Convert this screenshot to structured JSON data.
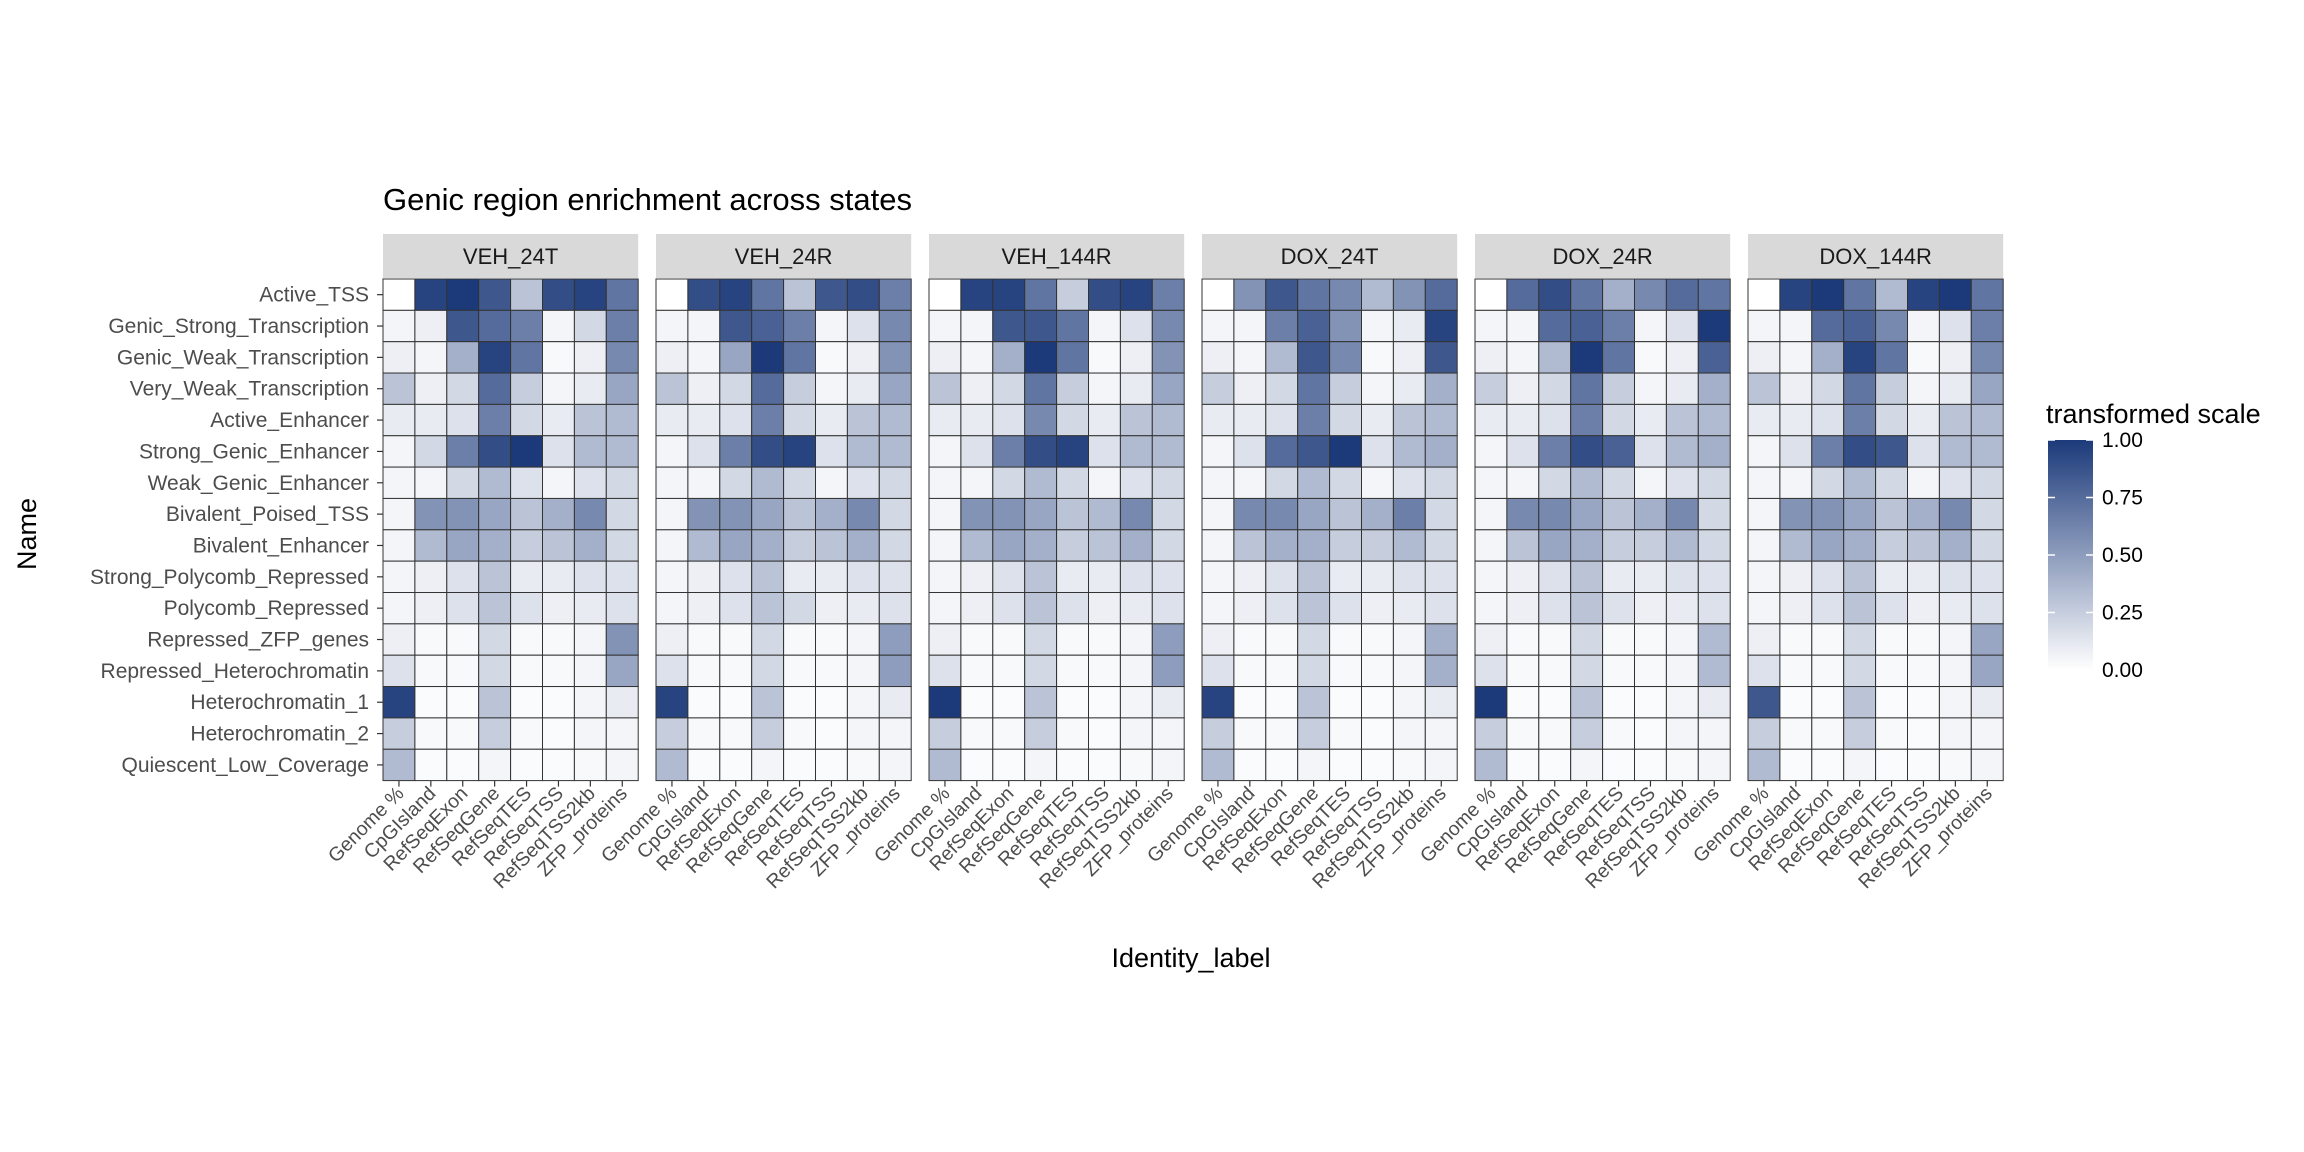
{
  "chart_data": {
    "type": "heatmap",
    "title": "Genic region enrichment across states",
    "xlabel": "Identity_label",
    "ylabel": "Name",
    "colors": {
      "low": "#ffffff",
      "high": "#1c3a7a",
      "grid": "#333333",
      "strip": "#d9d9d9"
    },
    "legend": {
      "title": "transformed scale",
      "position": "right",
      "ticks": [
        "0.00",
        "0.25",
        "0.50",
        "0.75",
        "1.00"
      ],
      "range": [
        0,
        1
      ]
    },
    "columns": [
      "Genome %",
      "CpGIsland",
      "RefSeqExon",
      "RefSeqGene",
      "RefSeqTES",
      "RefSeqTSS",
      "RefSeqTSS2kb",
      "ZFP_proteins"
    ],
    "rows": [
      "Active_TSS",
      "Genic_Strong_Transcription",
      "Genic_Weak_Transcription",
      "Very_Weak_Transcription",
      "Active_Enhancer",
      "Strong_Genic_Enhancer",
      "Weak_Genic_Enhancer",
      "Bivalent_Poised_TSS",
      "Bivalent_Enhancer",
      "Strong_Polycomb_Repressed",
      "Polycomb_Repressed",
      "Repressed_ZFP_genes",
      "Repressed_Heterochromatin",
      "Heterochromatin_1",
      "Heterochromatin_2",
      "Quiescent_Low_Coverage"
    ],
    "panels": [
      {
        "name": "VEH_24T",
        "values": [
          [
            0.0,
            0.95,
            1.0,
            0.85,
            0.3,
            0.9,
            0.95,
            0.7
          ],
          [
            0.05,
            0.08,
            0.85,
            0.75,
            0.65,
            0.05,
            0.2,
            0.65
          ],
          [
            0.08,
            0.05,
            0.4,
            0.95,
            0.7,
            0.03,
            0.08,
            0.6
          ],
          [
            0.3,
            0.08,
            0.2,
            0.75,
            0.25,
            0.05,
            0.1,
            0.45
          ],
          [
            0.1,
            0.1,
            0.15,
            0.65,
            0.2,
            0.1,
            0.3,
            0.35
          ],
          [
            0.05,
            0.2,
            0.65,
            0.9,
            1.0,
            0.15,
            0.35,
            0.35
          ],
          [
            0.05,
            0.05,
            0.2,
            0.35,
            0.15,
            0.05,
            0.15,
            0.2
          ],
          [
            0.05,
            0.55,
            0.55,
            0.45,
            0.3,
            0.4,
            0.6,
            0.2
          ],
          [
            0.05,
            0.35,
            0.45,
            0.4,
            0.25,
            0.3,
            0.4,
            0.2
          ],
          [
            0.05,
            0.08,
            0.15,
            0.3,
            0.1,
            0.1,
            0.15,
            0.15
          ],
          [
            0.05,
            0.08,
            0.15,
            0.3,
            0.15,
            0.08,
            0.1,
            0.15
          ],
          [
            0.08,
            0.03,
            0.03,
            0.2,
            0.03,
            0.03,
            0.05,
            0.55
          ],
          [
            0.15,
            0.03,
            0.03,
            0.2,
            0.03,
            0.03,
            0.05,
            0.45
          ],
          [
            0.95,
            0.02,
            0.02,
            0.3,
            0.02,
            0.02,
            0.05,
            0.1
          ],
          [
            0.25,
            0.03,
            0.03,
            0.25,
            0.03,
            0.02,
            0.05,
            0.05
          ],
          [
            0.35,
            0.02,
            0.02,
            0.05,
            0.02,
            0.02,
            0.03,
            0.05
          ]
        ]
      },
      {
        "name": "VEH_24R",
        "values": [
          [
            0.0,
            0.9,
            0.95,
            0.7,
            0.3,
            0.85,
            0.9,
            0.65
          ],
          [
            0.05,
            0.05,
            0.85,
            0.8,
            0.65,
            0.05,
            0.15,
            0.6
          ],
          [
            0.08,
            0.05,
            0.45,
            1.0,
            0.7,
            0.03,
            0.08,
            0.55
          ],
          [
            0.3,
            0.08,
            0.2,
            0.75,
            0.25,
            0.05,
            0.1,
            0.45
          ],
          [
            0.1,
            0.1,
            0.15,
            0.65,
            0.2,
            0.1,
            0.3,
            0.35
          ],
          [
            0.05,
            0.15,
            0.65,
            0.9,
            0.95,
            0.15,
            0.35,
            0.35
          ],
          [
            0.05,
            0.05,
            0.2,
            0.35,
            0.2,
            0.05,
            0.15,
            0.2
          ],
          [
            0.05,
            0.55,
            0.55,
            0.45,
            0.3,
            0.4,
            0.6,
            0.2
          ],
          [
            0.05,
            0.35,
            0.45,
            0.4,
            0.25,
            0.3,
            0.4,
            0.2
          ],
          [
            0.05,
            0.08,
            0.15,
            0.3,
            0.1,
            0.1,
            0.15,
            0.15
          ],
          [
            0.05,
            0.08,
            0.15,
            0.3,
            0.2,
            0.08,
            0.1,
            0.15
          ],
          [
            0.08,
            0.03,
            0.03,
            0.2,
            0.03,
            0.03,
            0.05,
            0.5
          ],
          [
            0.15,
            0.03,
            0.03,
            0.2,
            0.03,
            0.03,
            0.05,
            0.5
          ],
          [
            0.95,
            0.02,
            0.02,
            0.3,
            0.02,
            0.02,
            0.05,
            0.1
          ],
          [
            0.25,
            0.03,
            0.03,
            0.25,
            0.03,
            0.02,
            0.05,
            0.05
          ],
          [
            0.35,
            0.02,
            0.02,
            0.05,
            0.02,
            0.02,
            0.03,
            0.05
          ]
        ]
      },
      {
        "name": "VEH_144R",
        "values": [
          [
            0.0,
            0.95,
            0.95,
            0.7,
            0.25,
            0.9,
            0.95,
            0.65
          ],
          [
            0.05,
            0.05,
            0.85,
            0.85,
            0.7,
            0.05,
            0.15,
            0.6
          ],
          [
            0.08,
            0.05,
            0.4,
            1.0,
            0.7,
            0.03,
            0.08,
            0.55
          ],
          [
            0.3,
            0.08,
            0.2,
            0.7,
            0.25,
            0.05,
            0.1,
            0.45
          ],
          [
            0.1,
            0.1,
            0.15,
            0.6,
            0.2,
            0.1,
            0.3,
            0.35
          ],
          [
            0.05,
            0.15,
            0.65,
            0.9,
            0.95,
            0.15,
            0.35,
            0.35
          ],
          [
            0.05,
            0.05,
            0.2,
            0.35,
            0.2,
            0.05,
            0.15,
            0.2
          ],
          [
            0.05,
            0.55,
            0.55,
            0.45,
            0.3,
            0.35,
            0.6,
            0.2
          ],
          [
            0.05,
            0.35,
            0.45,
            0.4,
            0.25,
            0.3,
            0.4,
            0.2
          ],
          [
            0.05,
            0.08,
            0.15,
            0.3,
            0.1,
            0.1,
            0.15,
            0.15
          ],
          [
            0.05,
            0.08,
            0.15,
            0.3,
            0.15,
            0.08,
            0.1,
            0.15
          ],
          [
            0.08,
            0.03,
            0.03,
            0.2,
            0.03,
            0.03,
            0.05,
            0.5
          ],
          [
            0.15,
            0.03,
            0.03,
            0.2,
            0.03,
            0.03,
            0.05,
            0.5
          ],
          [
            1.0,
            0.02,
            0.02,
            0.3,
            0.02,
            0.02,
            0.05,
            0.1
          ],
          [
            0.25,
            0.03,
            0.03,
            0.25,
            0.03,
            0.02,
            0.05,
            0.05
          ],
          [
            0.35,
            0.02,
            0.02,
            0.05,
            0.02,
            0.02,
            0.03,
            0.05
          ]
        ]
      },
      {
        "name": "DOX_24T",
        "values": [
          [
            0.0,
            0.55,
            0.85,
            0.7,
            0.6,
            0.35,
            0.55,
            0.75
          ],
          [
            0.05,
            0.05,
            0.65,
            0.8,
            0.55,
            0.05,
            0.1,
            0.95
          ],
          [
            0.08,
            0.05,
            0.35,
            0.85,
            0.6,
            0.03,
            0.08,
            0.85
          ],
          [
            0.25,
            0.08,
            0.2,
            0.7,
            0.25,
            0.05,
            0.1,
            0.4
          ],
          [
            0.1,
            0.1,
            0.15,
            0.65,
            0.2,
            0.1,
            0.3,
            0.35
          ],
          [
            0.05,
            0.15,
            0.75,
            0.85,
            1.0,
            0.15,
            0.35,
            0.4
          ],
          [
            0.05,
            0.05,
            0.2,
            0.35,
            0.2,
            0.05,
            0.15,
            0.2
          ],
          [
            0.05,
            0.6,
            0.6,
            0.45,
            0.3,
            0.4,
            0.65,
            0.2
          ],
          [
            0.05,
            0.3,
            0.4,
            0.4,
            0.25,
            0.25,
            0.35,
            0.2
          ],
          [
            0.05,
            0.08,
            0.15,
            0.3,
            0.1,
            0.1,
            0.15,
            0.15
          ],
          [
            0.05,
            0.08,
            0.15,
            0.3,
            0.15,
            0.08,
            0.1,
            0.15
          ],
          [
            0.08,
            0.03,
            0.03,
            0.2,
            0.03,
            0.03,
            0.05,
            0.4
          ],
          [
            0.15,
            0.03,
            0.03,
            0.2,
            0.03,
            0.03,
            0.05,
            0.4
          ],
          [
            0.95,
            0.02,
            0.02,
            0.3,
            0.02,
            0.02,
            0.05,
            0.1
          ],
          [
            0.25,
            0.03,
            0.03,
            0.25,
            0.03,
            0.02,
            0.05,
            0.05
          ],
          [
            0.35,
            0.02,
            0.02,
            0.05,
            0.02,
            0.02,
            0.03,
            0.05
          ]
        ]
      },
      {
        "name": "DOX_24R",
        "values": [
          [
            0.0,
            0.75,
            0.9,
            0.7,
            0.4,
            0.6,
            0.75,
            0.7
          ],
          [
            0.05,
            0.05,
            0.75,
            0.8,
            0.65,
            0.05,
            0.15,
            1.0
          ],
          [
            0.08,
            0.05,
            0.35,
            1.0,
            0.7,
            0.03,
            0.08,
            0.8
          ],
          [
            0.25,
            0.08,
            0.2,
            0.7,
            0.25,
            0.05,
            0.1,
            0.4
          ],
          [
            0.1,
            0.1,
            0.15,
            0.65,
            0.2,
            0.1,
            0.3,
            0.35
          ],
          [
            0.05,
            0.15,
            0.65,
            0.9,
            0.8,
            0.15,
            0.35,
            0.4
          ],
          [
            0.05,
            0.05,
            0.2,
            0.35,
            0.2,
            0.05,
            0.15,
            0.2
          ],
          [
            0.05,
            0.6,
            0.6,
            0.45,
            0.3,
            0.4,
            0.6,
            0.2
          ],
          [
            0.05,
            0.3,
            0.45,
            0.4,
            0.25,
            0.25,
            0.35,
            0.2
          ],
          [
            0.05,
            0.08,
            0.15,
            0.3,
            0.1,
            0.1,
            0.15,
            0.15
          ],
          [
            0.05,
            0.08,
            0.15,
            0.3,
            0.15,
            0.08,
            0.1,
            0.15
          ],
          [
            0.08,
            0.03,
            0.03,
            0.2,
            0.03,
            0.03,
            0.05,
            0.35
          ],
          [
            0.15,
            0.03,
            0.03,
            0.2,
            0.03,
            0.03,
            0.05,
            0.35
          ],
          [
            1.0,
            0.02,
            0.02,
            0.3,
            0.02,
            0.02,
            0.05,
            0.1
          ],
          [
            0.25,
            0.03,
            0.03,
            0.25,
            0.03,
            0.02,
            0.05,
            0.05
          ],
          [
            0.35,
            0.02,
            0.02,
            0.05,
            0.02,
            0.02,
            0.03,
            0.05
          ]
        ]
      },
      {
        "name": "DOX_144R",
        "values": [
          [
            0.0,
            0.95,
            1.0,
            0.7,
            0.35,
            0.95,
            1.0,
            0.7
          ],
          [
            0.05,
            0.05,
            0.75,
            0.8,
            0.6,
            0.05,
            0.15,
            0.65
          ],
          [
            0.08,
            0.05,
            0.4,
            0.95,
            0.7,
            0.03,
            0.08,
            0.6
          ],
          [
            0.3,
            0.08,
            0.2,
            0.7,
            0.25,
            0.05,
            0.1,
            0.45
          ],
          [
            0.1,
            0.1,
            0.15,
            0.65,
            0.2,
            0.1,
            0.3,
            0.35
          ],
          [
            0.05,
            0.15,
            0.65,
            0.9,
            0.85,
            0.15,
            0.35,
            0.35
          ],
          [
            0.05,
            0.05,
            0.2,
            0.35,
            0.2,
            0.05,
            0.15,
            0.2
          ],
          [
            0.05,
            0.55,
            0.55,
            0.45,
            0.3,
            0.4,
            0.6,
            0.2
          ],
          [
            0.05,
            0.35,
            0.45,
            0.4,
            0.25,
            0.3,
            0.4,
            0.2
          ],
          [
            0.05,
            0.08,
            0.15,
            0.3,
            0.1,
            0.1,
            0.15,
            0.15
          ],
          [
            0.05,
            0.08,
            0.15,
            0.3,
            0.15,
            0.08,
            0.1,
            0.15
          ],
          [
            0.08,
            0.03,
            0.03,
            0.2,
            0.03,
            0.03,
            0.05,
            0.45
          ],
          [
            0.15,
            0.03,
            0.03,
            0.2,
            0.03,
            0.03,
            0.05,
            0.45
          ],
          [
            0.85,
            0.02,
            0.02,
            0.3,
            0.02,
            0.02,
            0.05,
            0.1
          ],
          [
            0.25,
            0.03,
            0.03,
            0.25,
            0.03,
            0.02,
            0.05,
            0.05
          ],
          [
            0.35,
            0.02,
            0.02,
            0.05,
            0.02,
            0.02,
            0.03,
            0.05
          ]
        ]
      }
    ]
  }
}
